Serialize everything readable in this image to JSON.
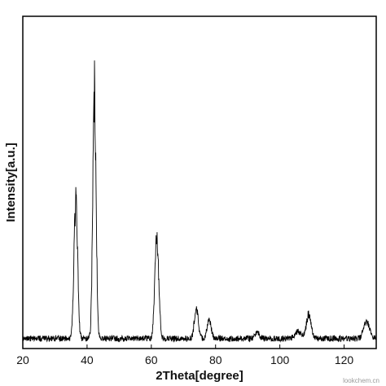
{
  "chart_data": {
    "type": "line",
    "title": "",
    "xlabel": "2Theta[degree]",
    "ylabel": "Intensity[a.u.]",
    "xlim": [
      20,
      130
    ],
    "ylim": [
      0,
      100
    ],
    "xticks": [
      20,
      40,
      60,
      80,
      100,
      120
    ],
    "xtick_labels": [
      "20",
      "40",
      "60",
      "80",
      "100",
      "120"
    ],
    "grid": false,
    "legend": "none",
    "series": [
      {
        "color": "#000000",
        "baseline": 3,
        "noise": 0.9,
        "peaks": [
          {
            "x": 36.5,
            "height": 42,
            "width": 0.55
          },
          {
            "x": 42.3,
            "height": 75,
            "width": 0.5
          },
          {
            "x": 61.7,
            "height": 31,
            "width": 0.6
          },
          {
            "x": 74.0,
            "height": 9,
            "width": 0.6
          },
          {
            "x": 78.0,
            "height": 6,
            "width": 0.6
          },
          {
            "x": 93.0,
            "height": 2,
            "width": 0.7
          },
          {
            "x": 105.5,
            "height": 2,
            "width": 0.9
          },
          {
            "x": 109.0,
            "height": 7,
            "width": 0.8
          },
          {
            "x": 127.0,
            "height": 5,
            "width": 0.9
          }
        ]
      }
    ]
  },
  "watermark": "lookchem.cn"
}
